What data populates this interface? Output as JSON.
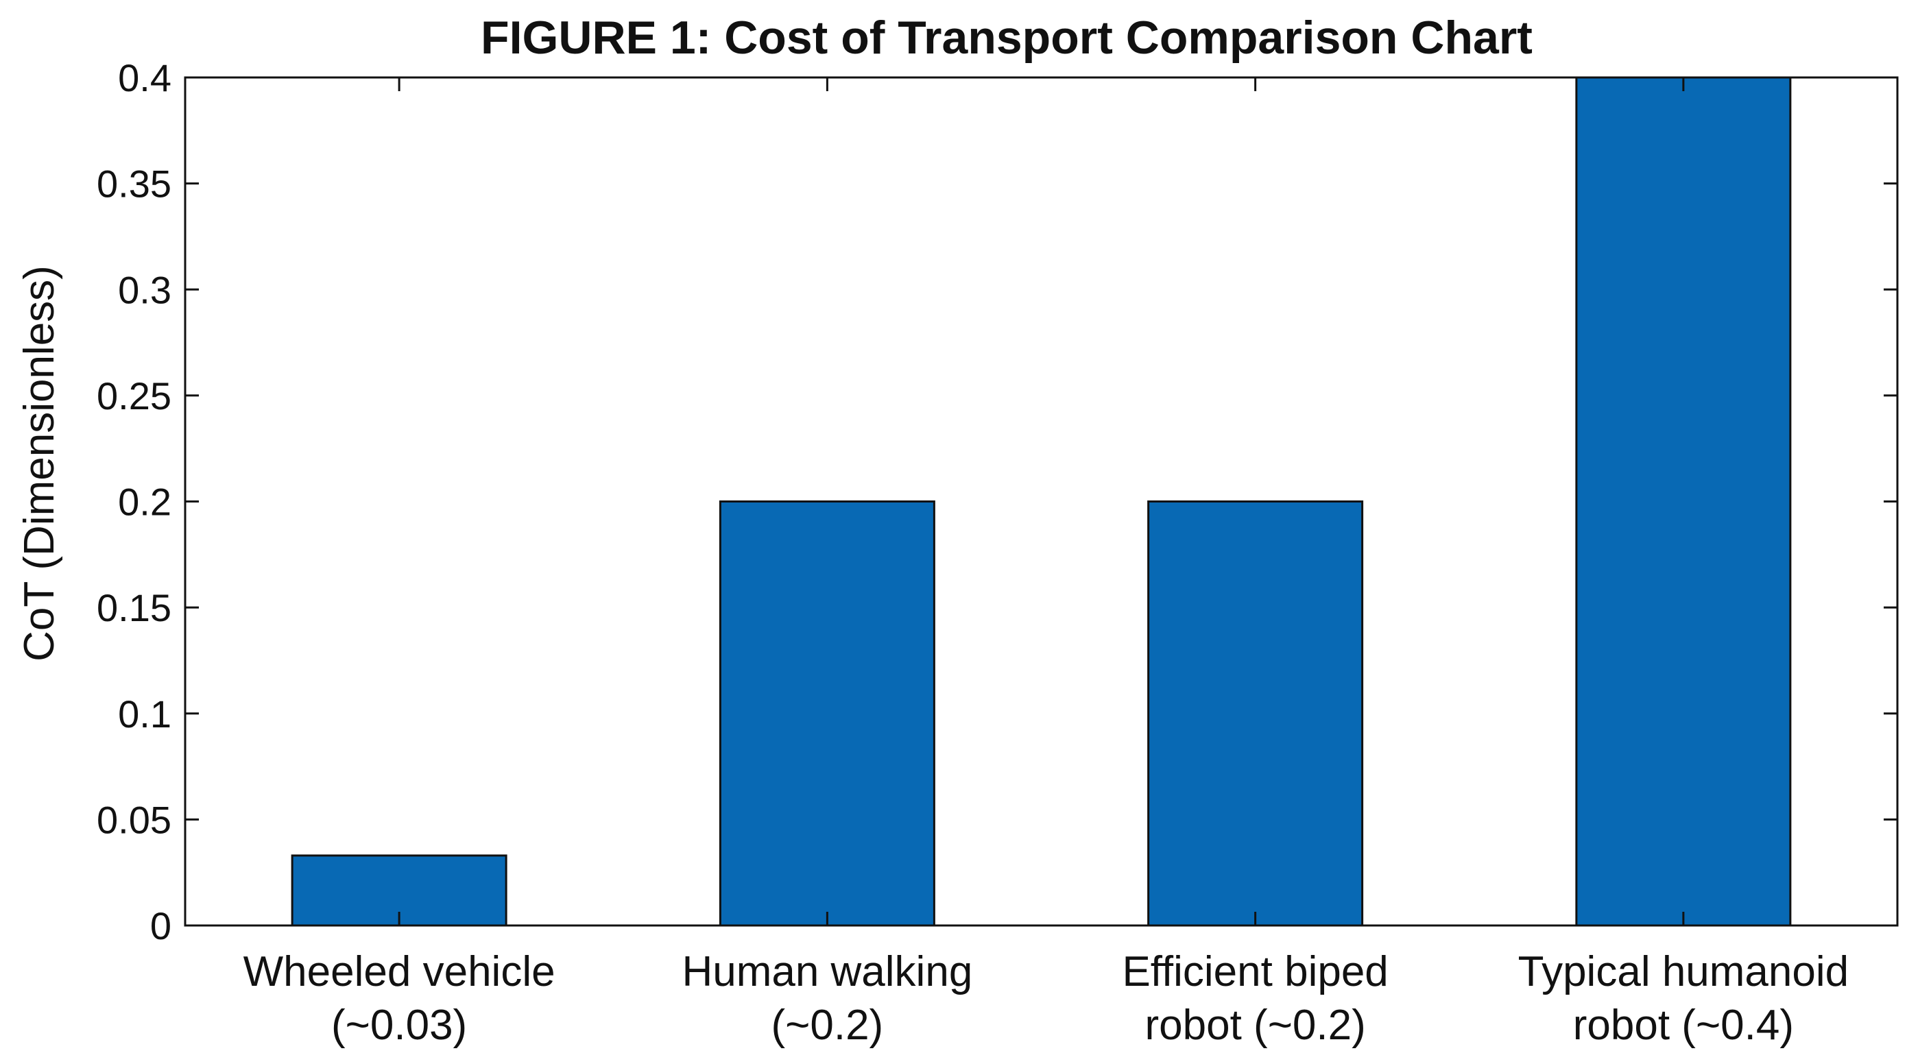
{
  "chart_data": {
    "type": "bar",
    "title": "FIGURE 1: Cost of Transport Comparison Chart",
    "xlabel": "",
    "ylabel": "CoT (Dimensionless)",
    "ylim": [
      0,
      0.4
    ],
    "yticks": [
      0,
      0.05,
      0.1,
      0.15,
      0.2,
      0.25,
      0.3,
      0.35,
      0.4
    ],
    "ytick_labels": [
      "0",
      "0.05",
      "0.1",
      "0.15",
      "0.2",
      "0.25",
      "0.3",
      "0.35",
      "0.4"
    ],
    "categories": [
      [
        "Wheeled vehicle",
        "(~0.03)"
      ],
      [
        "Human walking",
        "(~0.2)"
      ],
      [
        "Efficient biped",
        "robot (~0.2)"
      ],
      [
        "Typical humanoid",
        "robot (~0.4)"
      ]
    ],
    "values": [
      0.033,
      0.2,
      0.2,
      0.4
    ],
    "bar_color": "#0869b4",
    "bar_edge_color": "#111111",
    "grid": false,
    "legend": "none"
  }
}
